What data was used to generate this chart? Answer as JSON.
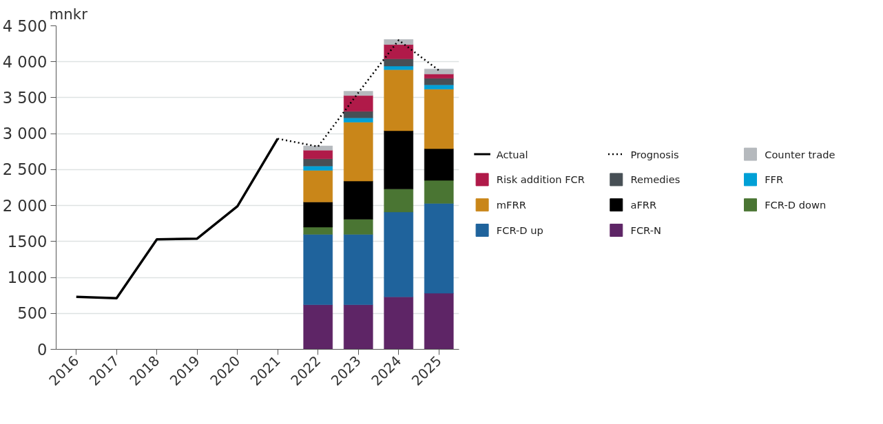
{
  "chart_data": {
    "type": "bar",
    "stacked": true,
    "ylabel": "mnkr",
    "categories": [
      "2016",
      "2017",
      "2018",
      "2019",
      "2020",
      "2021",
      "2022",
      "2023",
      "2024",
      "2025"
    ],
    "ylim": [
      0,
      4500
    ],
    "yticks": [
      0,
      500,
      {
        "value": 1000,
        "label": "1000"
      },
      {
        "value": 1500,
        "label": "1500"
      },
      {
        "value": 2000,
        "label": "2 000"
      },
      {
        "value": 2500,
        "label": "2 500"
      },
      {
        "value": 3000,
        "label": "3 000"
      },
      {
        "value": 3500,
        "label": "3 500"
      },
      {
        "value": 4000,
        "label": "4 000"
      },
      {
        "value": 4500,
        "label": "4 500"
      }
    ],
    "grid": "y",
    "legend": "right",
    "series": [
      {
        "name": "FCR-N",
        "color": "#5e2566",
        "values": [
          null,
          null,
          null,
          null,
          null,
          null,
          620,
          620,
          730,
          780
        ]
      },
      {
        "name": "FCR-D up",
        "color": "#1f639c",
        "values": [
          null,
          null,
          null,
          null,
          null,
          null,
          980,
          980,
          1180,
          1250
        ]
      },
      {
        "name": "FCR-D down",
        "color": "#4a7533",
        "values": [
          null,
          null,
          null,
          null,
          null,
          null,
          100,
          210,
          320,
          320
        ]
      },
      {
        "name": "aFRR",
        "color": "#000000",
        "values": [
          null,
          null,
          null,
          null,
          null,
          null,
          350,
          530,
          810,
          440
        ]
      },
      {
        "name": "mFRR",
        "color": "#c98619",
        "values": [
          null,
          null,
          null,
          null,
          null,
          null,
          440,
          820,
          850,
          830
        ]
      },
      {
        "name": "FFR",
        "color": "#00a0d6",
        "values": [
          null,
          null,
          null,
          null,
          null,
          null,
          60,
          60,
          50,
          60
        ]
      },
      {
        "name": "Remedies",
        "color": "#474f55",
        "values": [
          null,
          null,
          null,
          null,
          null,
          null,
          100,
          90,
          100,
          90
        ]
      },
      {
        "name": "Risk addition FCR",
        "color": "#b01a49",
        "values": [
          null,
          null,
          null,
          null,
          null,
          null,
          120,
          220,
          200,
          60
        ]
      },
      {
        "name": "Counter trade",
        "color": "#b5b9bd",
        "values": [
          null,
          null,
          null,
          null,
          null,
          null,
          60,
          60,
          70,
          70
        ]
      },
      {
        "name": "Actual",
        "type": "line",
        "color": "#000000",
        "line_style": "solid",
        "values": [
          730,
          710,
          1530,
          1540,
          1990,
          2930,
          null,
          null,
          null,
          null
        ]
      },
      {
        "name": "Prognosis",
        "type": "line",
        "color": "#000000",
        "line_style": "dotted",
        "values": [
          null,
          null,
          null,
          null,
          null,
          2930,
          2820,
          3570,
          4300,
          3880
        ]
      }
    ]
  }
}
